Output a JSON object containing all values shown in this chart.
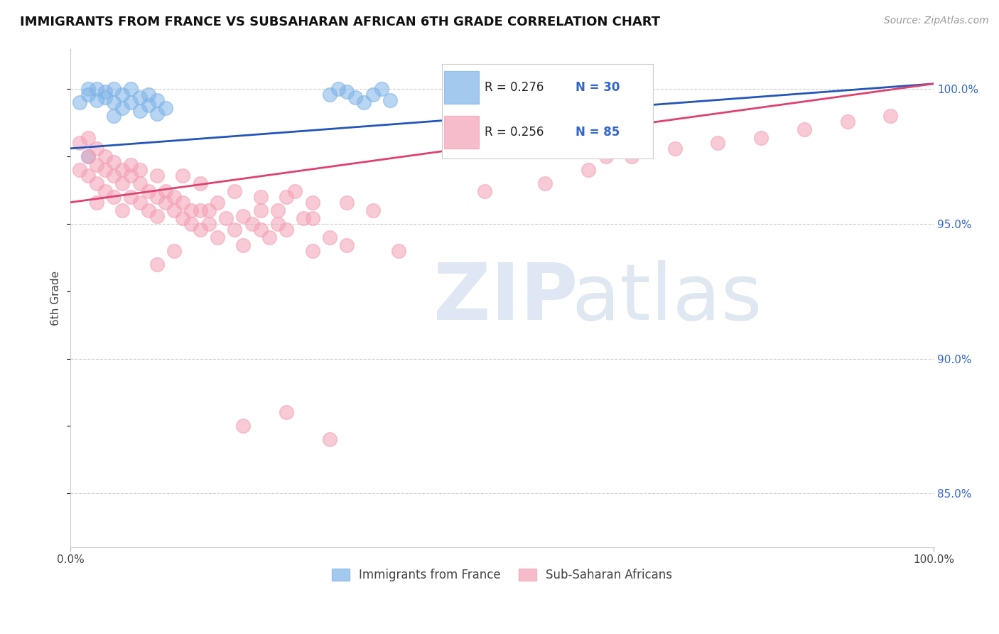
{
  "title": "IMMIGRANTS FROM FRANCE VS SUBSAHARAN AFRICAN 6TH GRADE CORRELATION CHART",
  "source": "Source: ZipAtlas.com",
  "ylabel": "6th Grade",
  "xlim": [
    0.0,
    1.0
  ],
  "ylim": [
    83.0,
    101.5
  ],
  "legend_r1": "R = 0.276",
  "legend_n1": "N = 30",
  "legend_r2": "R = 0.256",
  "legend_n2": "N = 85",
  "legend_label1": "Immigrants from France",
  "legend_label2": "Sub-Saharan Africans",
  "blue_color": "#7EB3E8",
  "blue_edge_color": "#5A9AD4",
  "blue_line_color": "#2255BB",
  "pink_color": "#F4A0B5",
  "pink_edge_color": "#E07090",
  "pink_line_color": "#E04070",
  "grid_color": "#CCCCCC",
  "tick_color_right": "#3366CC",
  "blue_points_x": [
    0.01,
    0.02,
    0.02,
    0.03,
    0.03,
    0.04,
    0.04,
    0.05,
    0.05,
    0.06,
    0.06,
    0.07,
    0.07,
    0.08,
    0.08,
    0.09,
    0.09,
    0.1,
    0.1,
    0.11,
    0.3,
    0.31,
    0.32,
    0.33,
    0.34,
    0.35,
    0.36,
    0.37,
    0.02,
    0.05
  ],
  "blue_points_y": [
    99.5,
    99.8,
    100.0,
    99.6,
    100.0,
    99.7,
    99.9,
    99.5,
    100.0,
    99.3,
    99.8,
    99.5,
    100.0,
    99.2,
    99.7,
    99.4,
    99.8,
    99.1,
    99.6,
    99.3,
    99.8,
    100.0,
    99.9,
    99.7,
    99.5,
    99.8,
    100.0,
    99.6,
    97.5,
    99.0
  ],
  "pink_points_x": [
    0.01,
    0.01,
    0.02,
    0.02,
    0.02,
    0.03,
    0.03,
    0.03,
    0.03,
    0.04,
    0.04,
    0.04,
    0.05,
    0.05,
    0.05,
    0.06,
    0.06,
    0.06,
    0.07,
    0.07,
    0.07,
    0.08,
    0.08,
    0.08,
    0.09,
    0.09,
    0.1,
    0.1,
    0.1,
    0.11,
    0.11,
    0.12,
    0.12,
    0.13,
    0.13,
    0.14,
    0.14,
    0.15,
    0.15,
    0.16,
    0.16,
    0.17,
    0.18,
    0.19,
    0.2,
    0.2,
    0.21,
    0.22,
    0.23,
    0.24,
    0.25,
    0.27,
    0.28,
    0.3,
    0.32,
    0.35,
    0.38,
    0.22,
    0.24,
    0.26,
    0.28,
    0.55,
    0.6,
    0.65,
    0.7,
    0.75,
    0.8,
    0.85,
    0.9,
    0.95,
    0.13,
    0.15,
    0.17,
    0.19,
    0.22,
    0.25,
    0.28,
    0.32,
    0.48,
    0.62,
    0.1,
    0.12,
    0.2,
    0.25,
    0.3
  ],
  "pink_points_y": [
    98.0,
    97.0,
    97.5,
    96.8,
    98.2,
    96.5,
    97.2,
    95.8,
    97.8,
    97.0,
    96.2,
    97.5,
    96.8,
    97.3,
    96.0,
    96.5,
    97.0,
    95.5,
    96.8,
    97.2,
    96.0,
    95.8,
    96.5,
    97.0,
    95.5,
    96.2,
    96.0,
    95.3,
    96.8,
    95.8,
    96.2,
    95.5,
    96.0,
    95.2,
    95.8,
    95.0,
    95.5,
    94.8,
    95.5,
    95.0,
    95.5,
    94.5,
    95.2,
    94.8,
    95.3,
    94.2,
    95.0,
    94.8,
    94.5,
    95.0,
    94.8,
    95.2,
    94.0,
    94.5,
    94.2,
    95.5,
    94.0,
    96.0,
    95.5,
    96.2,
    95.8,
    96.5,
    97.0,
    97.5,
    97.8,
    98.0,
    98.2,
    98.5,
    98.8,
    99.0,
    96.8,
    96.5,
    95.8,
    96.2,
    95.5,
    96.0,
    95.2,
    95.8,
    96.2,
    97.5,
    93.5,
    94.0,
    87.5,
    88.0,
    87.0
  ]
}
